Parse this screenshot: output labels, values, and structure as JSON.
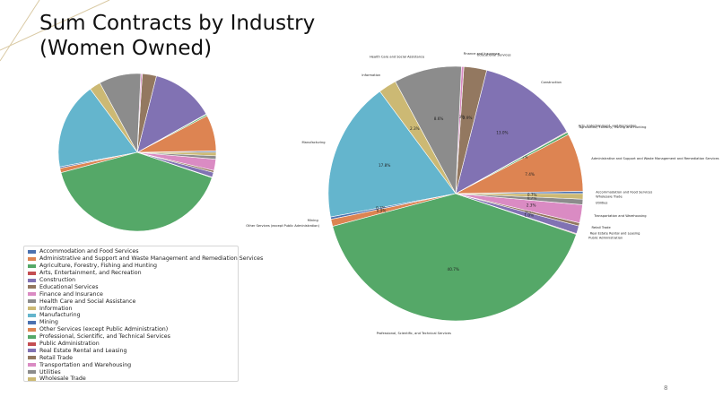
{
  "slide": {
    "title_line1": "Sum Contracts by Industry",
    "title_line2": "(Women Owned)",
    "page_number": "8"
  },
  "chart_data": [
    {
      "type": "pie",
      "title": "",
      "note": "Small pie without labels, legend shown below",
      "legend_placement": "bottom-left",
      "series": [
        {
          "slices": [
            {
              "label": "Accommodation and Food Services",
              "value": 0.3,
              "color": "#4c72b0"
            },
            {
              "label": "Administrative and Support and Waste Management and Remediation Services",
              "value": 7.4,
              "color": "#dd8452"
            },
            {
              "label": "Agriculture, Forestry, Fishing and Hunting",
              "value": 0.3,
              "color": "#55a868"
            },
            {
              "label": "Arts, Entertainment, and Recreation",
              "value": 0.1,
              "color": "#c44e52"
            },
            {
              "label": "Construction",
              "value": 13.0,
              "color": "#8172b3"
            },
            {
              "label": "Educational Services",
              "value": 2.9,
              "color": "#937860"
            },
            {
              "label": "Finance and Insurance",
              "value": 0.3,
              "color": "#da8bc3"
            },
            {
              "label": "Health Care and Social Assistance",
              "value": 8.6,
              "color": "#8c8c8c"
            },
            {
              "label": "Information",
              "value": 2.3,
              "color": "#ccb974"
            },
            {
              "label": "Manufacturing",
              "value": 17.8,
              "color": "#64b5cd"
            },
            {
              "label": "Mining",
              "value": 0.3,
              "color": "#4c72b0"
            },
            {
              "label": "Other Services (except Public Administration)",
              "value": 0.9,
              "color": "#dd8452"
            },
            {
              "label": "Professional, Scientific, and Technical Services",
              "value": 40.7,
              "color": "#55a868"
            },
            {
              "label": "Public Administration",
              "value": 0.1,
              "color": "#c44e52"
            },
            {
              "label": "Real Estate Rental and Leasing",
              "value": 1.0,
              "color": "#8172b3"
            },
            {
              "label": "Retail Trade",
              "value": 0.4,
              "color": "#937860"
            },
            {
              "label": "Transportation and Warehousing",
              "value": 2.3,
              "color": "#da8bc3"
            },
            {
              "label": "Utilities",
              "value": 0.7,
              "color": "#8c8c8c"
            },
            {
              "label": "Wholesale Trade",
              "value": 0.7,
              "color": "#ccb974"
            }
          ]
        }
      ]
    },
    {
      "type": "pie",
      "title": "",
      "note": "Large labeled pie with percentages",
      "series": [
        {
          "slices": [
            {
              "label": "Accommodation and Food Services",
              "value": 0.3,
              "pct": "",
              "color": "#4c72b0"
            },
            {
              "label": "Administrative and Support and Waste Management and Remediation Services",
              "value": 7.4,
              "pct": "7.4%",
              "color": "#dd8452"
            },
            {
              "label": "Agriculture, Forestry, Fishing and Hunting",
              "value": 0.3,
              "pct": "0.3%",
              "color": "#55a868"
            },
            {
              "label": "Arts, Entertainment, and Recreation",
              "value": 0.1,
              "pct": "",
              "color": "#c44e52"
            },
            {
              "label": "Construction",
              "value": 13.0,
              "pct": "13.0%",
              "color": "#8172b3"
            },
            {
              "label": "Educational Services",
              "value": 2.9,
              "pct": "2.9%",
              "color": "#937860"
            },
            {
              "label": "Finance and Insurance",
              "value": 0.3,
              "pct": "0.3%",
              "color": "#da8bc3"
            },
            {
              "label": "Health Care and Social Assistance",
              "value": 8.6,
              "pct": "8.6%",
              "color": "#8c8c8c"
            },
            {
              "label": "Information",
              "value": 2.3,
              "pct": "2.3%",
              "color": "#ccb974"
            },
            {
              "label": "Manufacturing",
              "value": 17.8,
              "pct": "17.8%",
              "color": "#64b5cd"
            },
            {
              "label": "Mining",
              "value": 0.3,
              "pct": "0.3%",
              "color": "#4c72b0"
            },
            {
              "label": "Other Services (except Public Administration)",
              "value": 0.9,
              "pct": "0.9%",
              "color": "#dd8452"
            },
            {
              "label": "Professional, Scientific, and Technical Services",
              "value": 40.7,
              "pct": "40.7%",
              "color": "#55a868"
            },
            {
              "label": "Public Administration",
              "value": 0.1,
              "pct": "",
              "color": "#c44e52"
            },
            {
              "label": "Real Estate Rental and Leasing",
              "value": 1.0,
              "pct": "1.0%",
              "color": "#8172b3"
            },
            {
              "label": "Retail Trade",
              "value": 0.4,
              "pct": "0.4%",
              "color": "#937860"
            },
            {
              "label": "Transportation and Warehousing",
              "value": 2.3,
              "pct": "2.3%",
              "color": "#da8bc3"
            },
            {
              "label": "Utilities",
              "value": 0.7,
              "pct": "0.7%",
              "color": "#8c8c8c"
            },
            {
              "label": "Wholesale Trade",
              "value": 0.7,
              "pct": "0.7%",
              "color": "#ccb974"
            }
          ]
        }
      ]
    }
  ],
  "colors": {
    "decor_line": "#d9c9a3",
    "slice_edge": "#ffffff"
  }
}
